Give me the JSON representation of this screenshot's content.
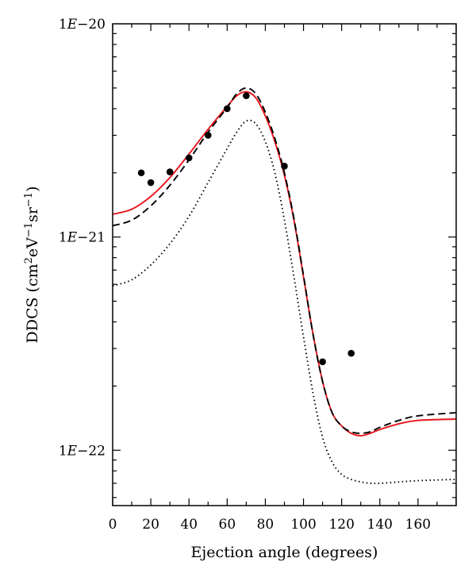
{
  "chart_data": {
    "type": "line",
    "title": "",
    "xlabel": "Ejection angle (degrees)",
    "ylabel_parts": [
      "DDCS (cm",
      "2",
      "eV",
      "−1",
      "sr",
      "−1",
      ")"
    ],
    "xlim": [
      0,
      180
    ],
    "ylim": [
      5.5e-23,
      1e-20
    ],
    "y_scale": "log",
    "grid": false,
    "legend": "none",
    "x_ticks": [
      0,
      20,
      40,
      60,
      80,
      100,
      120,
      140,
      160
    ],
    "y_tick_labels": [
      {
        "value": 1e-20,
        "mant": "1",
        "exp": "E",
        "pow": "−20"
      },
      {
        "value": 1e-21,
        "mant": "1",
        "exp": "E",
        "pow": "−21"
      },
      {
        "value": 1e-22,
        "mant": "1",
        "exp": "E",
        "pow": "−22"
      }
    ],
    "series": [
      {
        "style": "solid",
        "color": "#e8141b",
        "x": [
          0,
          10,
          20,
          30,
          40,
          50,
          60,
          65,
          70,
          75,
          80,
          85,
          90,
          95,
          100,
          105,
          110,
          115,
          120,
          125,
          130,
          135,
          140,
          150,
          160,
          180
        ],
        "y": [
          1.28e-21,
          1.35e-21,
          1.55e-21,
          1.9e-21,
          2.45e-21,
          3.2e-21,
          4.1e-21,
          4.6e-21,
          4.8e-21,
          4.5e-21,
          3.7e-21,
          2.8e-21,
          1.95e-21,
          1.2e-21,
          6.5e-22,
          3.5e-22,
          2.1e-22,
          1.5e-22,
          1.3e-22,
          1.2e-22,
          1.17e-22,
          1.2e-22,
          1.25e-22,
          1.33e-22,
          1.38e-22,
          1.4e-22
        ]
      },
      {
        "style": "dashed",
        "color": "#000000",
        "x": [
          0,
          10,
          20,
          30,
          40,
          50,
          60,
          65,
          70,
          75,
          80,
          85,
          90,
          95,
          100,
          105,
          110,
          115,
          120,
          125,
          130,
          135,
          140,
          150,
          160,
          180
        ],
        "y": [
          1.13e-21,
          1.2e-21,
          1.4e-21,
          1.75e-21,
          2.3e-21,
          3.1e-21,
          4.05e-21,
          4.7e-21,
          5e-21,
          4.7e-21,
          3.85e-21,
          2.9e-21,
          2e-21,
          1.22e-21,
          6.6e-22,
          3.5e-22,
          2.1e-22,
          1.5e-22,
          1.3e-22,
          1.22e-22,
          1.2e-22,
          1.22e-22,
          1.28e-22,
          1.38e-22,
          1.45e-22,
          1.5e-22
        ]
      },
      {
        "style": "dotted",
        "color": "#000000",
        "x": [
          0,
          10,
          20,
          30,
          40,
          50,
          60,
          65,
          70,
          75,
          80,
          85,
          90,
          95,
          100,
          105,
          110,
          115,
          120,
          125,
          130,
          135,
          140,
          150,
          160,
          180
        ],
        "y": [
          5.9e-22,
          6.3e-22,
          7.4e-22,
          9.3e-22,
          1.25e-21,
          1.8e-21,
          2.6e-21,
          3.1e-21,
          3.5e-21,
          3.4e-21,
          2.8e-21,
          2e-21,
          1.2e-21,
          6.5e-22,
          3.4e-22,
          1.85e-22,
          1.15e-22,
          8.8e-23,
          7.7e-23,
          7.3e-23,
          7.1e-23,
          7e-23,
          7e-23,
          7.1e-23,
          7.2e-23,
          7.3e-23
        ]
      }
    ],
    "points": {
      "x": [
        15,
        20,
        30,
        40,
        50,
        60,
        70,
        90,
        110,
        125
      ],
      "y": [
        2e-21,
        1.8e-21,
        2.02e-21,
        2.35e-21,
        3e-21,
        4e-21,
        4.6e-21,
        2.15e-21,
        2.6e-22,
        2.85e-22
      ]
    }
  }
}
